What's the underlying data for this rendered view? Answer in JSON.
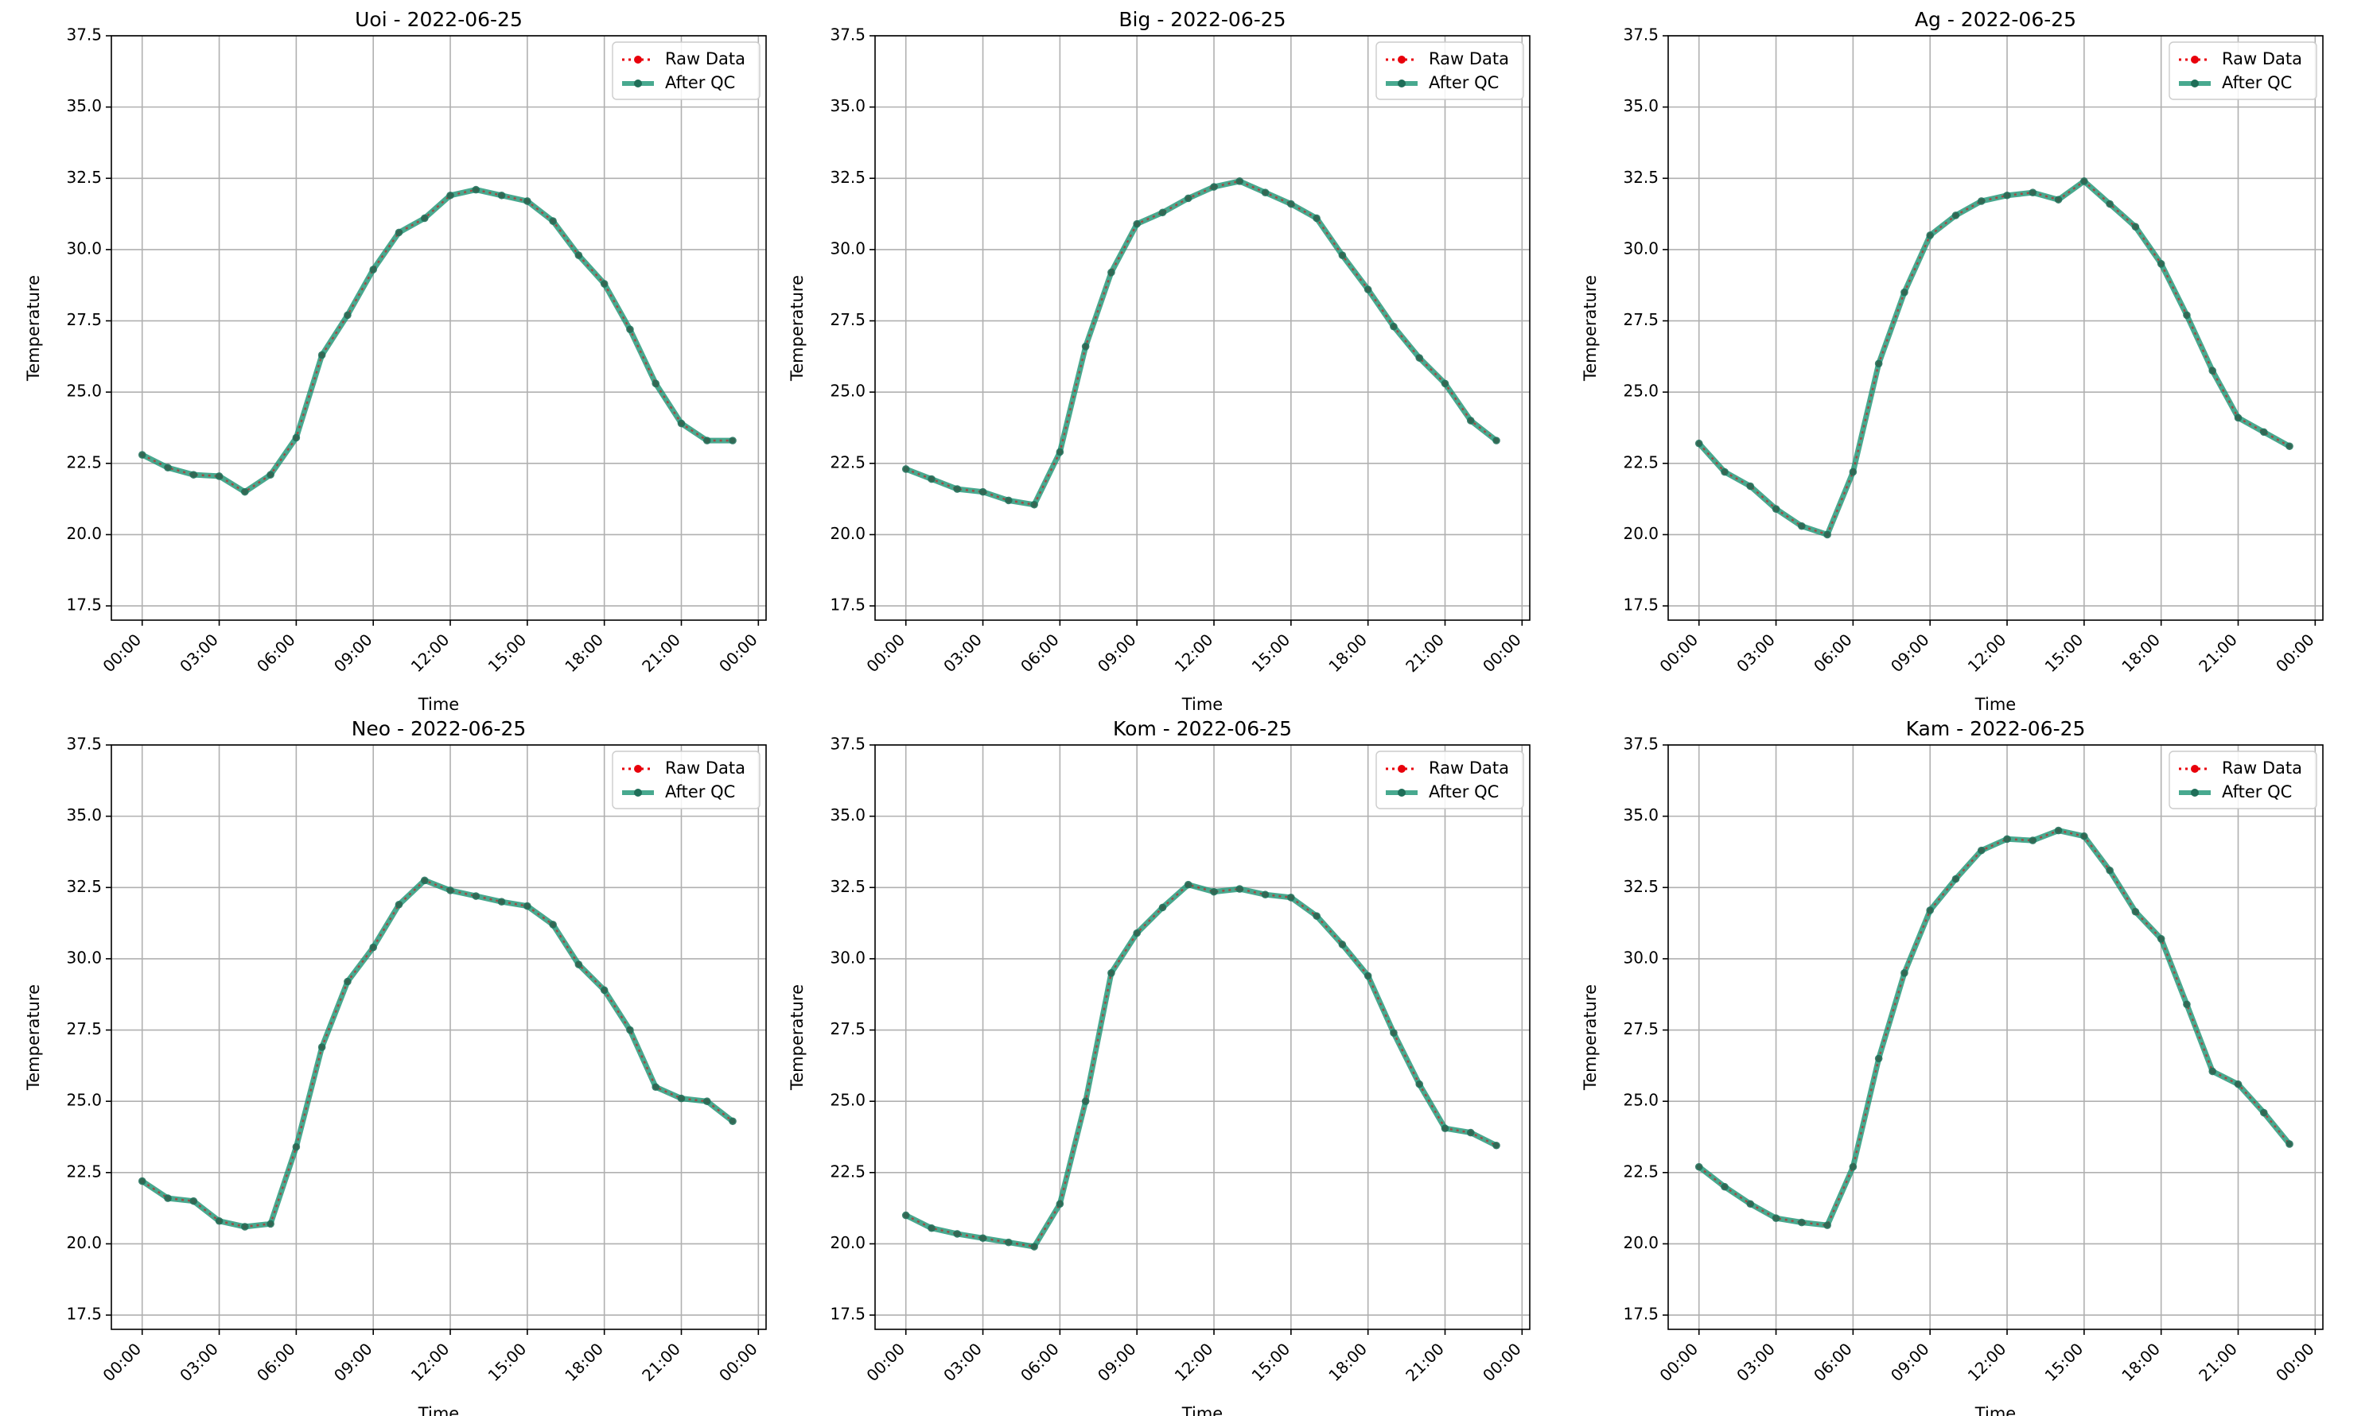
{
  "figure": {
    "x_tick_labels": [
      "00:00",
      "03:00",
      "06:00",
      "09:00",
      "12:00",
      "15:00",
      "18:00",
      "21:00",
      "00:00"
    ],
    "y_tick_labels": [
      "17.5",
      "20.0",
      "22.5",
      "25.0",
      "27.5",
      "30.0",
      "32.5",
      "35.0",
      "37.5"
    ],
    "legend": {
      "raw_label": "Raw Data",
      "qc_label": "After QC",
      "placement": "upper right"
    },
    "colors": {
      "raw": "#e8000b",
      "qc": "#1a9473",
      "grid": "#b0b0b0"
    }
  },
  "chart_data": [
    {
      "type": "line",
      "title": "Uoi - 2022-06-25",
      "xlabel": "Time",
      "ylabel": "Temperature",
      "x_unit": "hour",
      "x": [
        0,
        1,
        2,
        3,
        4,
        5,
        6,
        7,
        8,
        9,
        10,
        11,
        12,
        13,
        14,
        15,
        16,
        17,
        18,
        19,
        20,
        21,
        22,
        23
      ],
      "xlim": [
        "00:00",
        "00:00 (+1 day)"
      ],
      "ylim": [
        17.0,
        37.5
      ],
      "grid": true,
      "legend": "top-right",
      "series": [
        {
          "name": "Raw Data",
          "values": [
            22.8,
            22.35,
            22.1,
            22.05,
            21.5,
            22.1,
            23.4,
            26.3,
            27.7,
            29.3,
            30.6,
            31.1,
            31.9,
            32.1,
            31.9,
            31.7,
            31.0,
            29.8,
            28.8,
            27.2,
            25.3,
            23.9,
            23.3,
            23.3
          ]
        },
        {
          "name": "After QC",
          "values": [
            22.8,
            22.35,
            22.1,
            22.05,
            21.5,
            22.1,
            23.4,
            26.3,
            27.7,
            29.3,
            30.6,
            31.1,
            31.9,
            32.1,
            31.9,
            31.7,
            31.0,
            29.8,
            28.8,
            27.2,
            25.3,
            23.9,
            23.3,
            23.3
          ]
        }
      ]
    },
    {
      "type": "line",
      "title": "Big - 2022-06-25",
      "xlabel": "Time",
      "ylabel": "Temperature",
      "x_unit": "hour",
      "x": [
        0,
        1,
        2,
        3,
        4,
        5,
        6,
        7,
        8,
        9,
        10,
        11,
        12,
        13,
        14,
        15,
        16,
        17,
        18,
        19,
        20,
        21,
        22,
        23
      ],
      "xlim": [
        "00:00",
        "00:00 (+1 day)"
      ],
      "ylim": [
        17.0,
        37.5
      ],
      "grid": true,
      "legend": "top-right",
      "series": [
        {
          "name": "Raw Data",
          "values": [
            22.3,
            21.95,
            21.6,
            21.5,
            21.2,
            21.05,
            22.9,
            26.6,
            29.2,
            30.9,
            31.3,
            31.8,
            32.2,
            32.4,
            32.0,
            31.6,
            31.1,
            29.8,
            28.6,
            27.3,
            26.2,
            25.3,
            24.0,
            23.3
          ]
        },
        {
          "name": "After QC",
          "values": [
            22.3,
            21.95,
            21.6,
            21.5,
            21.2,
            21.05,
            22.9,
            26.6,
            29.2,
            30.9,
            31.3,
            31.8,
            32.2,
            32.4,
            32.0,
            31.6,
            31.1,
            29.8,
            28.6,
            27.3,
            26.2,
            25.3,
            24.0,
            23.3
          ]
        }
      ]
    },
    {
      "type": "line",
      "title": "Ag - 2022-06-25",
      "xlabel": "Time",
      "ylabel": "Temperature",
      "x_unit": "hour",
      "x": [
        0,
        1,
        2,
        3,
        4,
        5,
        6,
        7,
        8,
        9,
        10,
        11,
        12,
        13,
        14,
        15,
        16,
        17,
        18,
        19,
        20,
        21,
        22,
        23
      ],
      "xlim": [
        "00:00",
        "00:00 (+1 day)"
      ],
      "ylim": [
        17.0,
        37.5
      ],
      "grid": true,
      "legend": "top-right",
      "series": [
        {
          "name": "Raw Data",
          "values": [
            23.2,
            22.2,
            21.7,
            20.9,
            20.3,
            20.0,
            22.2,
            26.0,
            28.5,
            30.5,
            31.2,
            31.7,
            31.9,
            32.0,
            31.75,
            32.4,
            31.6,
            30.8,
            29.5,
            27.7,
            25.75,
            24.1,
            23.6,
            23.1
          ]
        },
        {
          "name": "After QC",
          "values": [
            23.2,
            22.2,
            21.7,
            20.9,
            20.3,
            20.0,
            22.2,
            26.0,
            28.5,
            30.5,
            31.2,
            31.7,
            31.9,
            32.0,
            31.75,
            32.4,
            31.6,
            30.8,
            29.5,
            27.7,
            25.75,
            24.1,
            23.6,
            23.1
          ]
        }
      ]
    },
    {
      "type": "line",
      "title": "Neo - 2022-06-25",
      "xlabel": "Time",
      "ylabel": "Temperature",
      "x_unit": "hour",
      "x": [
        0,
        1,
        2,
        3,
        4,
        5,
        6,
        7,
        8,
        9,
        10,
        11,
        12,
        13,
        14,
        15,
        16,
        17,
        18,
        19,
        20,
        21,
        22,
        23
      ],
      "xlim": [
        "00:00",
        "00:00 (+1 day)"
      ],
      "ylim": [
        17.0,
        37.5
      ],
      "grid": true,
      "legend": "top-right",
      "series": [
        {
          "name": "Raw Data",
          "values": [
            22.2,
            21.6,
            21.5,
            20.8,
            20.6,
            20.7,
            23.4,
            26.9,
            29.2,
            30.4,
            31.9,
            32.75,
            32.4,
            32.2,
            32.0,
            31.85,
            31.2,
            29.8,
            28.9,
            27.5,
            25.5,
            25.1,
            25.0,
            24.3
          ]
        },
        {
          "name": "After QC",
          "values": [
            22.2,
            21.6,
            21.5,
            20.8,
            20.6,
            20.7,
            23.4,
            26.9,
            29.2,
            30.4,
            31.9,
            32.75,
            32.4,
            32.2,
            32.0,
            31.85,
            31.2,
            29.8,
            28.9,
            27.5,
            25.5,
            25.1,
            25.0,
            24.3
          ]
        }
      ]
    },
    {
      "type": "line",
      "title": "Kom - 2022-06-25",
      "xlabel": "Time",
      "ylabel": "Temperature",
      "x_unit": "hour",
      "x": [
        0,
        1,
        2,
        3,
        4,
        5,
        6,
        7,
        8,
        9,
        10,
        11,
        12,
        13,
        14,
        15,
        16,
        17,
        18,
        19,
        20,
        21,
        22,
        23
      ],
      "xlim": [
        "00:00",
        "00:00 (+1 day)"
      ],
      "ylim": [
        17.0,
        37.5
      ],
      "grid": true,
      "legend": "top-right",
      "series": [
        {
          "name": "Raw Data",
          "values": [
            21.0,
            20.55,
            20.35,
            20.2,
            20.05,
            19.9,
            21.4,
            25.0,
            29.5,
            30.9,
            31.8,
            32.6,
            32.35,
            32.45,
            32.25,
            32.15,
            31.5,
            30.5,
            29.4,
            27.4,
            25.6,
            24.05,
            23.9,
            23.45
          ]
        },
        {
          "name": "After QC",
          "values": [
            21.0,
            20.55,
            20.35,
            20.2,
            20.05,
            19.9,
            21.4,
            25.0,
            29.5,
            30.9,
            31.8,
            32.6,
            32.35,
            32.45,
            32.25,
            32.15,
            31.5,
            30.5,
            29.4,
            27.4,
            25.6,
            24.05,
            23.9,
            23.45
          ]
        }
      ]
    },
    {
      "type": "line",
      "title": "Kam - 2022-06-25",
      "xlabel": "Time",
      "ylabel": "Temperature",
      "x_unit": "hour",
      "x": [
        0,
        1,
        2,
        3,
        4,
        5,
        6,
        7,
        8,
        9,
        10,
        11,
        12,
        13,
        14,
        15,
        16,
        17,
        18,
        19,
        20,
        21,
        22,
        23
      ],
      "xlim": [
        "00:00",
        "00:00 (+1 day)"
      ],
      "ylim": [
        17.0,
        37.5
      ],
      "grid": true,
      "legend": "top-right",
      "series": [
        {
          "name": "Raw Data",
          "values": [
            22.7,
            22.0,
            21.4,
            20.9,
            20.75,
            20.65,
            22.7,
            26.5,
            29.5,
            31.7,
            32.8,
            33.8,
            34.2,
            34.15,
            34.5,
            34.3,
            33.1,
            31.65,
            30.7,
            28.4,
            26.05,
            25.6,
            24.6,
            23.5
          ]
        },
        {
          "name": "After QC",
          "values": [
            22.7,
            22.0,
            21.4,
            20.9,
            20.75,
            20.65,
            22.7,
            26.5,
            29.5,
            31.7,
            32.8,
            33.8,
            34.2,
            34.15,
            34.5,
            34.3,
            33.1,
            31.65,
            30.7,
            28.4,
            26.05,
            25.6,
            24.6,
            23.5
          ]
        }
      ]
    }
  ]
}
